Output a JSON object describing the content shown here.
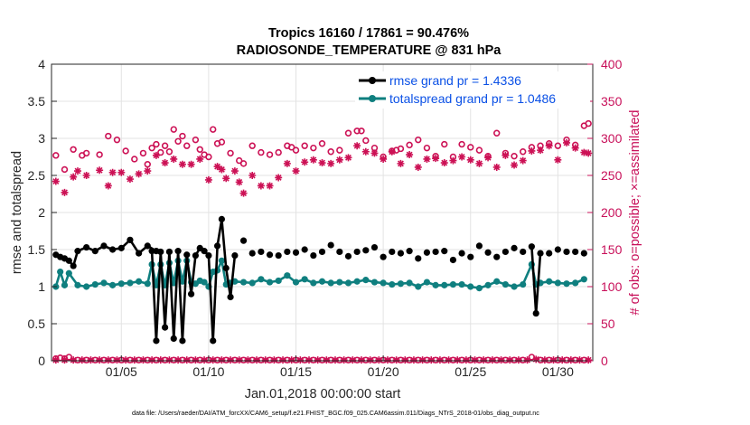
{
  "chart_data": {
    "type": "line",
    "title_line1": "Tropics 16160 / 17861 = 90.476%",
    "title_line2": "RADIOSONDE_TEMPERATURE @ 831 hPa",
    "xlabel": "Jan.01,2018 00:00:00 start",
    "ylabel_left": "rmse and totalspread",
    "ylabel_right": "# of obs: o=possible; ×=assimilated",
    "footnote": "data file: /Users/raeder/DAI/ATM_forcXX/CAM6_setup/f.e21.FHIST_BGC.f09_025.CAM6assim.011/Diags_NTrS_2018-01/obs_diag_output.nc",
    "xlim": [
      1.0,
      32.0
    ],
    "ylim_left": [
      0,
      4
    ],
    "ylim_right": [
      0,
      400
    ],
    "x_ticks": [
      5,
      10,
      15,
      20,
      25,
      30
    ],
    "x_tick_labels": [
      "01/05",
      "01/10",
      "01/15",
      "01/20",
      "01/25",
      "01/30"
    ],
    "y_left_ticks": [
      "0",
      "0.5",
      "1",
      "1.5",
      "2",
      "2.5",
      "3",
      "3.5",
      "4"
    ],
    "y_right_ticks": [
      "0",
      "50",
      "100",
      "150",
      "200",
      "250",
      "300",
      "350",
      "400"
    ],
    "legend": [
      {
        "label": "rmse grand pr = 1.4336",
        "color": "#000000"
      },
      {
        "label": "totalspread grand pr = 1.0486",
        "color": "#0f7f7f"
      }
    ],
    "colors": {
      "rmse": "#000000",
      "spread": "#0f7f7f",
      "obs": "#cc1155"
    },
    "series_rmse": [
      [
        1.25,
        1.43
      ],
      [
        1.5,
        1.4
      ],
      [
        1.75,
        1.38
      ],
      [
        2.0,
        1.35
      ],
      [
        2.25,
        1.28
      ],
      [
        2.5,
        1.48
      ],
      [
        3.0,
        1.53
      ],
      [
        3.5,
        1.48
      ],
      [
        4.0,
        1.55
      ],
      [
        4.5,
        1.5
      ],
      [
        5.0,
        1.52
      ],
      [
        5.5,
        1.63
      ],
      [
        6.0,
        1.45
      ],
      [
        6.5,
        1.55
      ],
      [
        7.0,
        1.48
      ],
      [
        6.75,
        1.48
      ],
      [
        7.0,
        0.27
      ],
      [
        7.25,
        1.47
      ],
      [
        7.5,
        0.45
      ],
      [
        7.75,
        1.47
      ],
      [
        8.0,
        0.3
      ],
      [
        8.25,
        1.48
      ],
      [
        8.5,
        0.27
      ],
      [
        8.75,
        1.43
      ],
      [
        9.0,
        0.9
      ],
      [
        9.25,
        1.42
      ],
      [
        9.5,
        1.52
      ],
      [
        9.75,
        1.48
      ],
      [
        10.0,
        1.42
      ],
      [
        10.25,
        0.27
      ],
      [
        10.5,
        1.55
      ],
      [
        10.75,
        1.91
      ],
      [
        11.0,
        1.25
      ],
      [
        11.25,
        0.86
      ],
      [
        11.5,
        1.42
      ]
    ],
    "series_rmse_tail": [
      [
        12.0,
        1.62
      ],
      [
        12.5,
        1.45
      ],
      [
        13.0,
        1.47
      ],
      [
        13.5,
        1.43
      ],
      [
        14.0,
        1.42
      ],
      [
        14.5,
        1.47
      ],
      [
        15.0,
        1.46
      ],
      [
        15.5,
        1.5
      ],
      [
        16.0,
        1.42
      ],
      [
        16.5,
        1.47
      ],
      [
        17.0,
        1.56
      ],
      [
        17.5,
        1.47
      ],
      [
        18.0,
        1.41
      ],
      [
        18.5,
        1.47
      ],
      [
        19.0,
        1.49
      ],
      [
        19.5,
        1.53
      ],
      [
        20.0,
        1.4
      ],
      [
        20.5,
        1.47
      ],
      [
        21.0,
        1.45
      ],
      [
        21.5,
        1.48
      ],
      [
        22.0,
        1.38
      ],
      [
        22.5,
        1.46
      ],
      [
        23.0,
        1.47
      ],
      [
        23.5,
        1.48
      ],
      [
        24.0,
        1.36
      ],
      [
        24.5,
        1.45
      ],
      [
        25.0,
        1.4
      ],
      [
        25.5,
        1.55
      ],
      [
        26.0,
        1.46
      ],
      [
        26.5,
        1.4
      ],
      [
        27.0,
        1.47
      ],
      [
        27.5,
        1.52
      ],
      [
        28.0,
        1.47
      ],
      [
        28.5,
        1.54
      ],
      [
        28.75,
        0.64
      ],
      [
        29.0,
        1.45
      ],
      [
        29.5,
        1.45
      ],
      [
        30.0,
        1.5
      ],
      [
        30.5,
        1.47
      ],
      [
        31.0,
        1.47
      ],
      [
        31.5,
        1.45
      ]
    ],
    "series_spread": [
      [
        1.25,
        1.0
      ],
      [
        1.5,
        1.2
      ],
      [
        1.75,
        1.02
      ],
      [
        2.0,
        1.18
      ],
      [
        2.5,
        1.02
      ],
      [
        3.0,
        1.0
      ],
      [
        3.5,
        1.03
      ],
      [
        4.0,
        1.05
      ],
      [
        4.5,
        1.02
      ],
      [
        5.0,
        1.04
      ],
      [
        5.5,
        1.05
      ],
      [
        6.0,
        1.07
      ],
      [
        6.5,
        1.04
      ],
      [
        6.75,
        1.3
      ],
      [
        7.0,
        1.02
      ],
      [
        7.25,
        1.3
      ],
      [
        7.5,
        1.02
      ],
      [
        7.75,
        1.32
      ],
      [
        8.0,
        1.05
      ],
      [
        8.25,
        1.35
      ],
      [
        8.5,
        1.07
      ],
      [
        8.75,
        1.35
      ],
      [
        9.0,
        1.06
      ],
      [
        9.25,
        1.04
      ],
      [
        9.5,
        1.08
      ],
      [
        9.75,
        1.06
      ],
      [
        10.0,
        1.0
      ],
      [
        10.25,
        1.2
      ],
      [
        10.5,
        1.22
      ],
      [
        10.75,
        1.35
      ],
      [
        11.0,
        1.03
      ],
      [
        11.25,
        1.05
      ],
      [
        11.5,
        1.07
      ],
      [
        12.0,
        1.06
      ],
      [
        12.5,
        1.05
      ],
      [
        13.0,
        1.1
      ],
      [
        13.5,
        1.06
      ],
      [
        14.0,
        1.08
      ],
      [
        14.5,
        1.15
      ],
      [
        15.0,
        1.06
      ],
      [
        15.5,
        1.1
      ],
      [
        16.0,
        1.05
      ],
      [
        16.5,
        1.07
      ],
      [
        17.0,
        1.05
      ],
      [
        17.5,
        1.06
      ],
      [
        18.0,
        1.05
      ],
      [
        18.5,
        1.07
      ],
      [
        19.0,
        1.09
      ],
      [
        19.5,
        1.06
      ],
      [
        20.0,
        1.05
      ],
      [
        20.5,
        1.03
      ],
      [
        21.0,
        1.04
      ],
      [
        21.5,
        1.05
      ],
      [
        22.0,
        1.0
      ],
      [
        22.5,
        1.06
      ],
      [
        23.0,
        1.02
      ],
      [
        23.5,
        1.02
      ],
      [
        24.0,
        1.03
      ],
      [
        24.5,
        1.03
      ],
      [
        25.0,
        1.0
      ],
      [
        25.5,
        0.98
      ],
      [
        26.0,
        1.02
      ],
      [
        26.5,
        1.07
      ],
      [
        27.0,
        1.03
      ],
      [
        27.5,
        1.0
      ],
      [
        28.0,
        1.03
      ],
      [
        28.5,
        1.3
      ],
      [
        28.75,
        1.03
      ],
      [
        29.0,
        1.05
      ],
      [
        29.5,
        1.07
      ],
      [
        30.0,
        1.05
      ],
      [
        30.5,
        1.04
      ],
      [
        31.0,
        1.05
      ],
      [
        31.5,
        1.1
      ]
    ],
    "obs_possible": [
      [
        1.25,
        277
      ],
      [
        1.75,
        258
      ],
      [
        2.25,
        285
      ],
      [
        2.75,
        277
      ],
      [
        3.0,
        280
      ],
      [
        3.75,
        278
      ],
      [
        4.25,
        303
      ],
      [
        4.75,
        298
      ],
      [
        5.25,
        283
      ],
      [
        5.75,
        272
      ],
      [
        6.25,
        280
      ],
      [
        6.5,
        265
      ],
      [
        6.75,
        287
      ],
      [
        7.0,
        292
      ],
      [
        7.25,
        281
      ],
      [
        7.5,
        290
      ],
      [
        7.75,
        282
      ],
      [
        8.0,
        312
      ],
      [
        8.25,
        296
      ],
      [
        8.5,
        303
      ],
      [
        8.75,
        290
      ],
      [
        9.25,
        298
      ],
      [
        9.5,
        285
      ],
      [
        9.75,
        278
      ],
      [
        10.0,
        275
      ],
      [
        10.25,
        312
      ],
      [
        10.5,
        293
      ],
      [
        10.75,
        295
      ],
      [
        11.25,
        280
      ],
      [
        11.75,
        270
      ],
      [
        12.0,
        266
      ],
      [
        12.5,
        290
      ],
      [
        13.0,
        281
      ],
      [
        13.5,
        278
      ],
      [
        14.0,
        281
      ],
      [
        14.5,
        290
      ],
      [
        14.75,
        288
      ],
      [
        15.0,
        284
      ],
      [
        15.5,
        290
      ],
      [
        16.0,
        287
      ],
      [
        16.5,
        293
      ],
      [
        17.0,
        282
      ],
      [
        17.5,
        284
      ],
      [
        18.0,
        307
      ],
      [
        18.5,
        310
      ],
      [
        18.75,
        310
      ],
      [
        19.0,
        297
      ],
      [
        19.5,
        287
      ],
      [
        20.0,
        275
      ],
      [
        20.5,
        283
      ],
      [
        20.75,
        284
      ],
      [
        21.0,
        286
      ],
      [
        21.5,
        291
      ],
      [
        22.0,
        298
      ],
      [
        22.5,
        287
      ],
      [
        23.0,
        276
      ],
      [
        23.5,
        292
      ],
      [
        24.0,
        275
      ],
      [
        24.5,
        292
      ],
      [
        25.0,
        288
      ],
      [
        25.5,
        284
      ],
      [
        26.0,
        276
      ],
      [
        26.5,
        307
      ],
      [
        27.0,
        280
      ],
      [
        27.5,
        276
      ],
      [
        28.0,
        282
      ],
      [
        28.5,
        288
      ],
      [
        29.0,
        290
      ],
      [
        29.5,
        293
      ],
      [
        30.0,
        290
      ],
      [
        30.5,
        298
      ],
      [
        31.0,
        291
      ],
      [
        31.5,
        317
      ],
      [
        31.75,
        320
      ]
    ],
    "obs_assimilated": [
      [
        1.25,
        242
      ],
      [
        1.75,
        227
      ],
      [
        2.25,
        248
      ],
      [
        2.5,
        256
      ],
      [
        3.0,
        250
      ],
      [
        3.75,
        257
      ],
      [
        4.25,
        236
      ],
      [
        4.5,
        254
      ],
      [
        5.0,
        254
      ],
      [
        5.5,
        245
      ],
      [
        6.0,
        252
      ],
      [
        6.5,
        256
      ],
      [
        7.0,
        277
      ],
      [
        7.5,
        267
      ],
      [
        8.0,
        272
      ],
      [
        8.5,
        265
      ],
      [
        9.0,
        265
      ],
      [
        9.5,
        272
      ],
      [
        10.0,
        244
      ],
      [
        10.5,
        262
      ],
      [
        10.75,
        258
      ],
      [
        11.0,
        246
      ],
      [
        11.5,
        256
      ],
      [
        11.75,
        241
      ],
      [
        12.0,
        226
      ],
      [
        12.5,
        250
      ],
      [
        13.0,
        236
      ],
      [
        13.5,
        236
      ],
      [
        14.0,
        247
      ],
      [
        14.5,
        266
      ],
      [
        15.0,
        256
      ],
      [
        15.5,
        268
      ],
      [
        16.0,
        271
      ],
      [
        16.5,
        267
      ],
      [
        17.0,
        266
      ],
      [
        17.5,
        271
      ],
      [
        18.0,
        274
      ],
      [
        18.5,
        290
      ],
      [
        19.0,
        282
      ],
      [
        19.5,
        280
      ],
      [
        20.0,
        272
      ],
      [
        20.5,
        282
      ],
      [
        21.0,
        266
      ],
      [
        21.5,
        278
      ],
      [
        22.0,
        261
      ],
      [
        22.5,
        272
      ],
      [
        23.0,
        273
      ],
      [
        23.5,
        267
      ],
      [
        24.0,
        270
      ],
      [
        24.5,
        275
      ],
      [
        25.0,
        271
      ],
      [
        25.5,
        266
      ],
      [
        26.0,
        274
      ],
      [
        26.5,
        261
      ],
      [
        27.0,
        277
      ],
      [
        27.5,
        264
      ],
      [
        28.0,
        270
      ],
      [
        28.5,
        283
      ],
      [
        29.0,
        284
      ],
      [
        29.5,
        290
      ],
      [
        30.0,
        271
      ],
      [
        30.5,
        294
      ],
      [
        31.0,
        287
      ],
      [
        31.5,
        281
      ],
      [
        31.75,
        280
      ]
    ],
    "obs_possible_bottom": [
      [
        1.25,
        3
      ],
      [
        1.5,
        4
      ],
      [
        1.75,
        3
      ],
      [
        2.0,
        5
      ],
      [
        2.5,
        1
      ],
      [
        3.0,
        1
      ],
      [
        3.5,
        1
      ],
      [
        4.0,
        1
      ],
      [
        4.5,
        1
      ],
      [
        5.0,
        1
      ],
      [
        5.5,
        1
      ],
      [
        6.0,
        1
      ],
      [
        6.5,
        1
      ],
      [
        7.0,
        1
      ],
      [
        7.5,
        1
      ],
      [
        8.0,
        1
      ],
      [
        8.5,
        1
      ],
      [
        9.0,
        1
      ],
      [
        9.5,
        1
      ],
      [
        10.0,
        1
      ],
      [
        10.5,
        1
      ],
      [
        11.0,
        1
      ],
      [
        11.5,
        1
      ],
      [
        12.0,
        1
      ],
      [
        12.5,
        1
      ],
      [
        13.0,
        1
      ],
      [
        13.5,
        1
      ],
      [
        14.0,
        1
      ],
      [
        14.5,
        1
      ],
      [
        15.0,
        1
      ],
      [
        15.5,
        1
      ],
      [
        16.0,
        1
      ],
      [
        16.5,
        1
      ],
      [
        17.0,
        1
      ],
      [
        17.5,
        1
      ],
      [
        18.0,
        1
      ],
      [
        18.5,
        1
      ],
      [
        19.0,
        1
      ],
      [
        19.5,
        1
      ],
      [
        20.0,
        1
      ],
      [
        20.5,
        1
      ],
      [
        21.0,
        1
      ],
      [
        21.5,
        1
      ],
      [
        22.0,
        1
      ],
      [
        22.5,
        1
      ],
      [
        23.0,
        1
      ],
      [
        23.5,
        1
      ],
      [
        24.0,
        1
      ],
      [
        24.5,
        1
      ],
      [
        25.0,
        1
      ],
      [
        25.5,
        1
      ],
      [
        26.0,
        1
      ],
      [
        26.5,
        1
      ],
      [
        27.0,
        1
      ],
      [
        27.5,
        1
      ],
      [
        28.0,
        1
      ],
      [
        28.5,
        5
      ],
      [
        29.0,
        1
      ],
      [
        29.5,
        1
      ],
      [
        30.0,
        1
      ],
      [
        30.5,
        1
      ],
      [
        31.0,
        1
      ],
      [
        31.5,
        1
      ]
    ],
    "obs_assim_bottom": [
      [
        1.25,
        1
      ],
      [
        1.75,
        1
      ],
      [
        2.25,
        1
      ],
      [
        2.75,
        1
      ],
      [
        3.25,
        1
      ],
      [
        3.75,
        1
      ],
      [
        4.25,
        1
      ],
      [
        4.75,
        1
      ],
      [
        5.25,
        1
      ],
      [
        5.75,
        1
      ],
      [
        6.25,
        1
      ],
      [
        6.75,
        1
      ],
      [
        7.25,
        1
      ],
      [
        7.75,
        1
      ],
      [
        8.25,
        1
      ],
      [
        8.75,
        1
      ],
      [
        9.25,
        1
      ],
      [
        9.75,
        1
      ],
      [
        10.25,
        1
      ],
      [
        10.75,
        1
      ],
      [
        11.25,
        1
      ],
      [
        11.75,
        1
      ],
      [
        12.25,
        1
      ],
      [
        12.75,
        1
      ],
      [
        13.25,
        1
      ],
      [
        13.75,
        1
      ],
      [
        14.25,
        1
      ],
      [
        14.75,
        1
      ],
      [
        15.25,
        1
      ],
      [
        15.75,
        1
      ],
      [
        16.25,
        1
      ],
      [
        16.75,
        1
      ],
      [
        17.25,
        1
      ],
      [
        17.75,
        1
      ],
      [
        18.25,
        1
      ],
      [
        18.75,
        1
      ],
      [
        19.25,
        1
      ],
      [
        19.75,
        1
      ],
      [
        20.25,
        1
      ],
      [
        20.75,
        1
      ],
      [
        21.25,
        1
      ],
      [
        21.75,
        1
      ],
      [
        22.25,
        1
      ],
      [
        22.75,
        1
      ],
      [
        23.25,
        1
      ],
      [
        23.75,
        1
      ],
      [
        24.25,
        1
      ],
      [
        24.75,
        1
      ],
      [
        25.25,
        1
      ],
      [
        25.75,
        1
      ],
      [
        26.25,
        1
      ],
      [
        26.75,
        1
      ],
      [
        27.25,
        1
      ],
      [
        27.75,
        1
      ],
      [
        28.25,
        1
      ],
      [
        28.75,
        2
      ],
      [
        29.25,
        1
      ],
      [
        29.75,
        1
      ],
      [
        30.25,
        1
      ],
      [
        30.75,
        1
      ],
      [
        31.25,
        1
      ],
      [
        31.75,
        1
      ]
    ]
  }
}
